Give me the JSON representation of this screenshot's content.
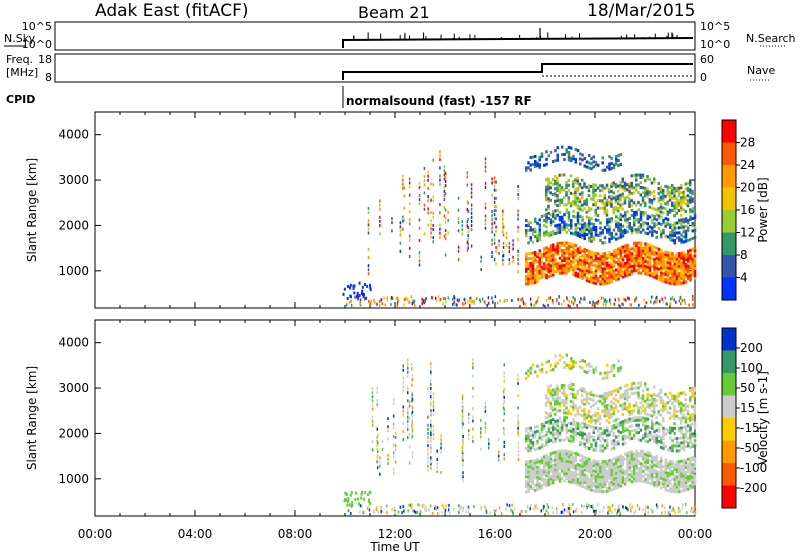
{
  "header": {
    "station": "Adak East (fitACF)",
    "beam": "Beam 21",
    "date": "18/Mar/2015"
  },
  "summary_panels": {
    "nsky_label": "N.Sky",
    "nsky_ticks": [
      "10^5",
      "10^0"
    ],
    "nsearch_label": "N.Search",
    "nsearch_ticks": [
      "10^5",
      "10^0"
    ],
    "freq_label": "Freq.",
    "freq_unit": "[MHz]",
    "freq_ticks": [
      "18",
      "8"
    ],
    "nave_label": "Nave",
    "nave_ticks": [
      "60",
      "0"
    ],
    "cpid_label": "CPID",
    "cpid_text": "normalsound (fast) -157 RF"
  },
  "chart_data": [
    {
      "type": "heatmap",
      "name": "power",
      "ylabel": "Slant Range [km]",
      "yticks": [
        1000,
        2000,
        3000,
        4000
      ],
      "ylim": [
        180,
        4500
      ],
      "xlim_hours": [
        0,
        24
      ],
      "colorbar_label": "Power [dB]",
      "colorbar_ticks": [
        "28",
        "24",
        "20",
        "16",
        "12",
        "8",
        "4"
      ],
      "colorbar_colors": [
        "#ff0000",
        "#ff5a00",
        "#ff9900",
        "#f2c200",
        "#99cc33",
        "#339966",
        "#3355aa",
        "#0033ff"
      ],
      "data_start_hour": 10,
      "features": [
        {
          "label": "sporadic echoes",
          "t_start": 10.5,
          "t_end": 17,
          "r_min": 1000,
          "r_max": 3600
        },
        {
          "label": "band",
          "t_start": 17.2,
          "t_end": 24,
          "r_min": 800,
          "r_max": 1500
        },
        {
          "label": "band",
          "t_start": 17.2,
          "t_end": 24,
          "r_min": 1700,
          "r_max": 2200
        },
        {
          "label": "band",
          "t_start": 18,
          "t_end": 24,
          "r_min": 2300,
          "r_max": 3000
        },
        {
          "label": "band",
          "t_start": 17.2,
          "t_end": 21,
          "r_min": 3300,
          "r_max": 3600
        },
        {
          "label": "ground scatter",
          "t_start": 9.9,
          "t_end": 11,
          "r_min": 300,
          "r_max": 700
        }
      ]
    },
    {
      "type": "heatmap",
      "name": "velocity",
      "ylabel": "Slant Range [km]",
      "yticks": [
        1000,
        2000,
        3000,
        4000
      ],
      "ylim": [
        180,
        4500
      ],
      "xlim_hours": [
        0,
        24
      ],
      "colorbar_label": "Velocity [m s-1]",
      "colorbar_ticks": [
        "200",
        "100",
        "50",
        "15",
        "-15",
        "-50",
        "-100",
        "-200"
      ],
      "colorbar_colors": [
        "#0033cc",
        "#339966",
        "#66cc33",
        "#cccccc",
        "#ffcc00",
        "#ff9900",
        "#ff5a00",
        "#ff0000"
      ],
      "data_start_hour": 10,
      "xticks": [
        "00:00",
        "04:00",
        "08:00",
        "12:00",
        "16:00",
        "20:00",
        "00:00"
      ],
      "xlabel": "Time UT"
    }
  ]
}
